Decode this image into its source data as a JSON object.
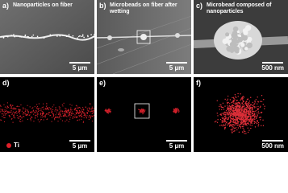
{
  "panels": [
    {
      "label": "a)",
      "caption": "Nanoparticles on fiber",
      "scale_bar": "5 µm"
    },
    {
      "label": "b)",
      "caption": "Microbeads on fiber after wetting",
      "scale_bar": "5 µm"
    },
    {
      "label": "c)",
      "caption": "Microbead composed of nanoparticles",
      "scale_bar": "500 nm"
    },
    {
      "label": "d)",
      "legend": "Ti",
      "scale_bar": "5 µm"
    },
    {
      "label": "e)",
      "scale_bar": "5 µm"
    },
    {
      "label": "f)",
      "scale_bar": "500 nm"
    }
  ]
}
